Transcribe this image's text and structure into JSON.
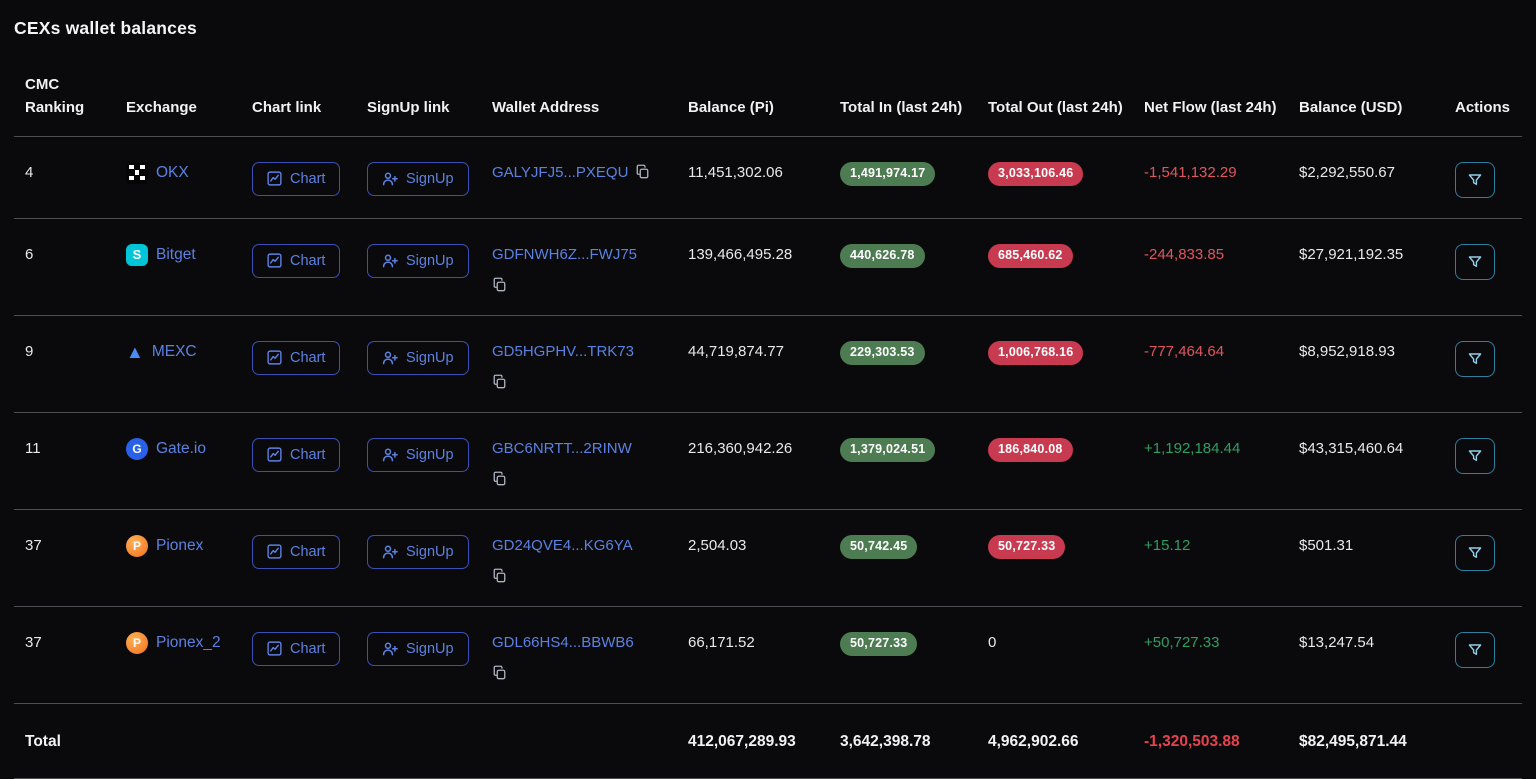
{
  "title": "CEXs wallet balances",
  "buttons": {
    "chart_label": "Chart",
    "signup_label": "SignUp"
  },
  "colors": {
    "background": "#0a0a0d",
    "link_blue": "#5b82e0",
    "pill_green": "#4e7c52",
    "pill_red": "#c73a50",
    "net_positive": "#2f9e63",
    "net_negative": "#de5660",
    "actions_teal": "#2f7e9d"
  },
  "table": {
    "headers": [
      "CMC Ranking",
      "Exchange",
      "Chart link",
      "SignUp link",
      "Wallet Address",
      "Balance (Pi)",
      "Total In (last 24h)",
      "Total Out (last 24h)",
      "Net Flow (last 24h)",
      "Balance (USD)",
      "Actions"
    ],
    "rows": [
      {
        "ranking": "4",
        "exchange": "OKX",
        "exchange_icon": "okx-icon",
        "wallet": "GALYJFJ5...PXEQU",
        "copy_icon_inline": true,
        "balance_pi": "11,451,302.06",
        "total_in": "1,491,974.17",
        "total_out": "3,033,106.46",
        "total_out_is_pill": true,
        "net_flow": "-1,541,132.29",
        "balance_usd": "$2,292,550.67"
      },
      {
        "ranking": "6",
        "exchange": "Bitget",
        "exchange_icon": "bitget-icon",
        "wallet": "GDFNWH6Z...FWJ75",
        "copy_icon_inline": false,
        "balance_pi": "139,466,495.28",
        "total_in": "440,626.78",
        "total_out": "685,460.62",
        "total_out_is_pill": true,
        "net_flow": "-244,833.85",
        "balance_usd": "$27,921,192.35"
      },
      {
        "ranking": "9",
        "exchange": "MEXC",
        "exchange_icon": "mexc-icon",
        "wallet": "GD5HGPHV...TRK73",
        "copy_icon_inline": false,
        "balance_pi": "44,719,874.77",
        "total_in": "229,303.53",
        "total_out": "1,006,768.16",
        "total_out_is_pill": true,
        "net_flow": "-777,464.64",
        "balance_usd": "$8,952,918.93"
      },
      {
        "ranking": "11",
        "exchange": "Gate.io",
        "exchange_icon": "gateio-icon",
        "wallet": "GBC6NRTT...2RINW",
        "copy_icon_inline": false,
        "balance_pi": "216,360,942.26",
        "total_in": "1,379,024.51",
        "total_out": "186,840.08",
        "total_out_is_pill": true,
        "net_flow": "+1,192,184.44",
        "balance_usd": "$43,315,460.64"
      },
      {
        "ranking": "37",
        "exchange": "Pionex",
        "exchange_icon": "pionex-icon",
        "wallet": "GD24QVE4...KG6YA",
        "copy_icon_inline": false,
        "balance_pi": "2,504.03",
        "total_in": "50,742.45",
        "total_out": "50,727.33",
        "total_out_is_pill": true,
        "net_flow": "+15.12",
        "balance_usd": "$501.31"
      },
      {
        "ranking": "37",
        "exchange": "Pionex_2",
        "exchange_icon": "pionex-icon",
        "wallet": "GDL66HS4...BBWB6",
        "copy_icon_inline": false,
        "balance_pi": "66,171.52",
        "total_in": "50,727.33",
        "total_out": "0",
        "total_out_is_pill": false,
        "net_flow": "+50,727.33",
        "balance_usd": "$13,247.54"
      }
    ],
    "total": {
      "label": "Total",
      "balance_pi": "412,067,289.93",
      "total_in": "3,642,398.78",
      "total_out": "4,962,902.66",
      "net_flow": "-1,320,503.88",
      "balance_usd": "$82,495,871.44"
    }
  }
}
